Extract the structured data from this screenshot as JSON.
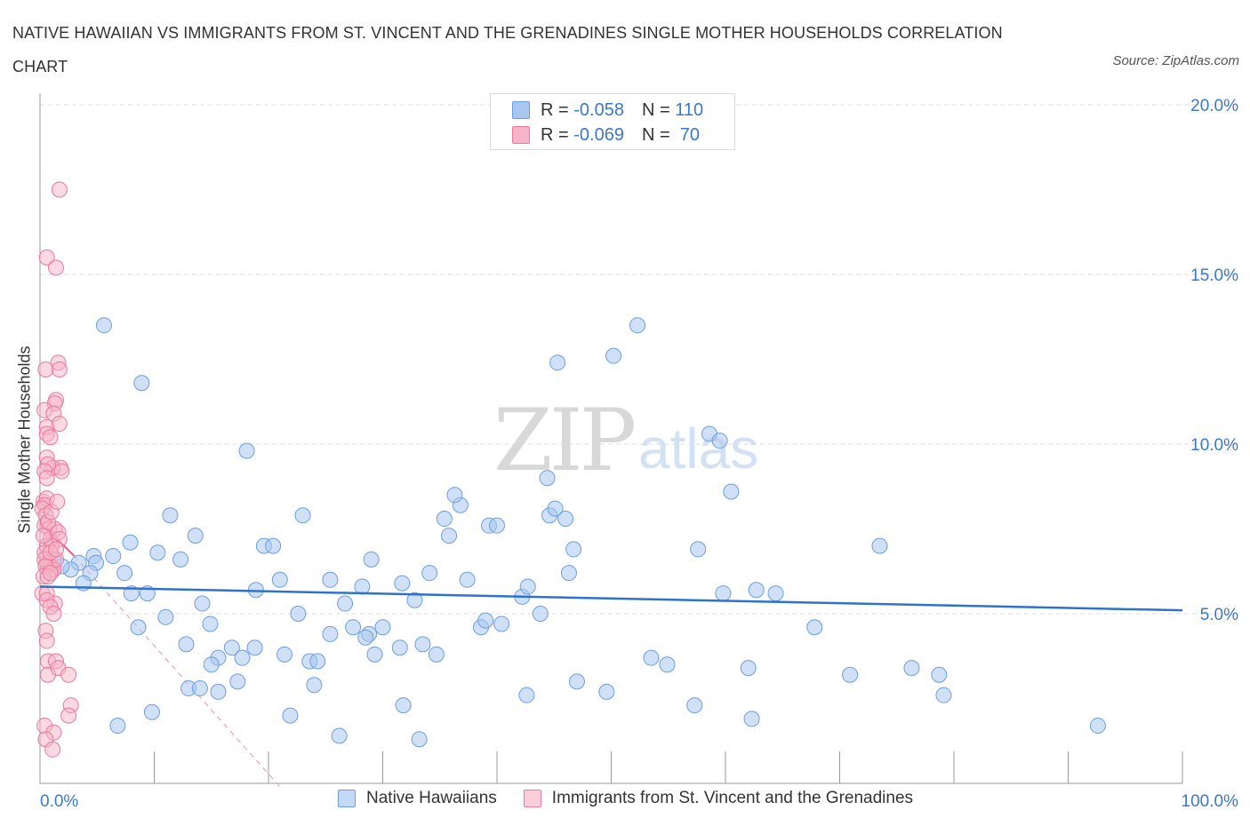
{
  "title": "NATIVE HAWAIIAN VS IMMIGRANTS FROM ST. VINCENT AND THE GRENADINES SINGLE MOTHER HOUSEHOLDS CORRELATION CHART",
  "source": "Source: ZipAtlas.com",
  "watermark": {
    "zip": "ZIP",
    "atlas": "atlas"
  },
  "legend": {
    "r_label": "R = ",
    "n_label": "N = ",
    "entries": [
      {
        "r": "-0.058",
        "n": "110"
      },
      {
        "r": "-0.069",
        "n": " 70"
      }
    ]
  },
  "bottom_legend": [
    "Native Hawaiians",
    "Immigrants from St. Vincent and the Grenadines"
  ],
  "colors": {
    "blue_fill": "#a9c8f0",
    "blue_stroke": "#6b9ee0",
    "blue_line": "#2e72cf",
    "pink_fill": "#f6b4c8",
    "pink_stroke": "#e9799d",
    "pink_line": "#e8588a",
    "axis_text": "#3a78c9",
    "grid": "#dddddd"
  },
  "chart_data": {
    "type": "scatter",
    "title": "NATIVE HAWAIIAN VS IMMIGRANTS FROM ST. VINCENT AND THE GRENADINES SINGLE MOTHER HOUSEHOLDS CORRELATION CHART",
    "xlabel": "",
    "ylabel": "Single Mother Households",
    "xlim": [
      0,
      100
    ],
    "ylim": [
      0,
      20
    ],
    "x_tick_labels": [
      "0.0%",
      "100.0%"
    ],
    "y_ticks": [
      5,
      10,
      15,
      20
    ],
    "y_tick_labels": [
      "5.0%",
      "10.0%",
      "15.0%",
      "20.0%"
    ],
    "grid": true,
    "legend_placement": "top-center",
    "series": [
      {
        "name": "Native Hawaiians",
        "r": -0.058,
        "n": 110,
        "trend": [
          [
            0,
            5.8
          ],
          [
            100,
            5.1
          ]
        ],
        "points": [
          [
            5.6,
            13.5
          ],
          [
            8.9,
            11.8
          ],
          [
            18.1,
            9.8
          ],
          [
            11.4,
            7.9
          ],
          [
            13.6,
            7.3
          ],
          [
            7.9,
            7.1
          ],
          [
            10.3,
            6.8
          ],
          [
            4.7,
            6.7
          ],
          [
            6.4,
            6.7
          ],
          [
            3.4,
            6.5
          ],
          [
            4.9,
            6.5
          ],
          [
            2.7,
            6.3
          ],
          [
            1.9,
            6.4
          ],
          [
            7.4,
            6.2
          ],
          [
            4.4,
            6.2
          ],
          [
            1.2,
            6.6
          ],
          [
            3.8,
            5.9
          ],
          [
            9.4,
            5.6
          ],
          [
            14.2,
            5.3
          ],
          [
            19.6,
            7.0
          ],
          [
            20.4,
            7.0
          ],
          [
            23.0,
            7.9
          ],
          [
            21.0,
            6.0
          ],
          [
            18.9,
            5.7
          ],
          [
            25.4,
            6.0
          ],
          [
            28.2,
            5.8
          ],
          [
            26.7,
            5.3
          ],
          [
            22.6,
            5.0
          ],
          [
            11.0,
            4.9
          ],
          [
            14.9,
            4.7
          ],
          [
            8.6,
            4.6
          ],
          [
            12.8,
            4.1
          ],
          [
            16.8,
            4.0
          ],
          [
            18.8,
            4.0
          ],
          [
            15.6,
            3.7
          ],
          [
            15.0,
            3.5
          ],
          [
            17.7,
            3.7
          ],
          [
            21.4,
            3.8
          ],
          [
            23.6,
            3.6
          ],
          [
            24.3,
            3.6
          ],
          [
            25.4,
            4.4
          ],
          [
            27.4,
            4.6
          ],
          [
            28.8,
            4.4
          ],
          [
            29.3,
            3.8
          ],
          [
            24.0,
            2.9
          ],
          [
            17.3,
            3.0
          ],
          [
            13.0,
            2.8
          ],
          [
            14.0,
            2.8
          ],
          [
            15.6,
            2.7
          ],
          [
            9.8,
            2.1
          ],
          [
            6.8,
            1.7
          ],
          [
            21.9,
            2.0
          ],
          [
            26.2,
            1.4
          ],
          [
            31.5,
            4.0
          ],
          [
            33.5,
            4.1
          ],
          [
            34.7,
            3.8
          ],
          [
            30.0,
            4.6
          ],
          [
            31.7,
            5.9
          ],
          [
            29.0,
            6.6
          ],
          [
            32.8,
            5.4
          ],
          [
            34.1,
            6.2
          ],
          [
            37.4,
            6.0
          ],
          [
            35.4,
            7.8
          ],
          [
            35.8,
            7.3
          ],
          [
            36.8,
            8.2
          ],
          [
            36.3,
            8.5
          ],
          [
            39.3,
            7.6
          ],
          [
            40.0,
            7.6
          ],
          [
            38.6,
            4.6
          ],
          [
            40.4,
            4.7
          ],
          [
            39.0,
            4.8
          ],
          [
            42.2,
            5.5
          ],
          [
            42.7,
            5.8
          ],
          [
            43.8,
            5.0
          ],
          [
            42.6,
            2.6
          ],
          [
            33.2,
            1.3
          ],
          [
            31.8,
            2.3
          ],
          [
            44.4,
            9.0
          ],
          [
            44.6,
            7.9
          ],
          [
            45.1,
            8.1
          ],
          [
            46.0,
            7.8
          ],
          [
            46.7,
            6.9
          ],
          [
            45.3,
            12.4
          ],
          [
            47.0,
            3.0
          ],
          [
            49.6,
            2.7
          ],
          [
            50.2,
            12.6
          ],
          [
            52.3,
            13.5
          ],
          [
            53.5,
            3.7
          ],
          [
            54.9,
            3.5
          ],
          [
            57.3,
            2.3
          ],
          [
            58.6,
            10.3
          ],
          [
            59.5,
            10.1
          ],
          [
            60.5,
            8.6
          ],
          [
            57.6,
            6.9
          ],
          [
            62.7,
            5.7
          ],
          [
            62.0,
            3.4
          ],
          [
            64.4,
            5.6
          ],
          [
            67.8,
            4.6
          ],
          [
            62.3,
            1.9
          ],
          [
            70.9,
            3.2
          ],
          [
            73.5,
            7.0
          ],
          [
            76.3,
            3.4
          ],
          [
            78.7,
            3.2
          ],
          [
            79.1,
            2.6
          ],
          [
            92.6,
            1.7
          ],
          [
            59.8,
            5.6
          ],
          [
            28.5,
            4.3
          ],
          [
            12.3,
            6.6
          ],
          [
            8.0,
            5.6
          ],
          [
            46.3,
            6.2
          ]
        ]
      },
      {
        "name": "Immigrants from St. Vincent and the Grenadines",
        "r": -0.069,
        "n": 70,
        "trend": [
          [
            0,
            7.7
          ],
          [
            3,
            6.7
          ]
        ],
        "trend_extended": [
          [
            3,
            6.7
          ],
          [
            21,
            -0.1
          ]
        ],
        "points": [
          [
            1.7,
            17.5
          ],
          [
            0.6,
            15.5
          ],
          [
            1.4,
            15.2
          ],
          [
            1.6,
            12.4
          ],
          [
            1.7,
            12.2
          ],
          [
            0.5,
            12.2
          ],
          [
            1.4,
            11.3
          ],
          [
            1.3,
            11.2
          ],
          [
            0.4,
            11.0
          ],
          [
            1.2,
            10.9
          ],
          [
            0.6,
            10.5
          ],
          [
            1.7,
            10.6
          ],
          [
            0.6,
            10.3
          ],
          [
            0.6,
            9.6
          ],
          [
            1.8,
            9.3
          ],
          [
            1.1,
            9.3
          ],
          [
            0.7,
            9.4
          ],
          [
            1.9,
            9.2
          ],
          [
            0.4,
            9.2
          ],
          [
            0.3,
            8.3
          ],
          [
            0.6,
            8.4
          ],
          [
            0.4,
            8.2
          ],
          [
            0.2,
            8.1
          ],
          [
            0.5,
            7.9
          ],
          [
            0.4,
            7.6
          ],
          [
            0.8,
            7.5
          ],
          [
            0.9,
            7.2
          ],
          [
            1.3,
            7.5
          ],
          [
            1.6,
            7.4
          ],
          [
            1.7,
            7.2
          ],
          [
            1.0,
            7.0
          ],
          [
            0.6,
            7.0
          ],
          [
            0.4,
            6.8
          ],
          [
            0.6,
            6.5
          ],
          [
            0.9,
            6.4
          ],
          [
            1.0,
            6.3
          ],
          [
            1.2,
            6.3
          ],
          [
            1.4,
            6.6
          ],
          [
            0.4,
            6.6
          ],
          [
            0.5,
            6.4
          ],
          [
            0.3,
            6.1
          ],
          [
            0.7,
            6.1
          ],
          [
            0.9,
            6.2
          ],
          [
            0.2,
            5.6
          ],
          [
            0.6,
            5.6
          ],
          [
            1.3,
            5.3
          ],
          [
            0.6,
            5.4
          ],
          [
            0.9,
            5.2
          ],
          [
            1.2,
            5.0
          ],
          [
            0.5,
            4.5
          ],
          [
            0.6,
            4.2
          ],
          [
            0.7,
            3.6
          ],
          [
            1.4,
            3.6
          ],
          [
            0.7,
            3.2
          ],
          [
            1.6,
            3.4
          ],
          [
            2.5,
            3.2
          ],
          [
            2.7,
            2.3
          ],
          [
            2.5,
            2.0
          ],
          [
            0.4,
            1.7
          ],
          [
            1.2,
            1.5
          ],
          [
            0.5,
            1.3
          ],
          [
            1.1,
            1.0
          ],
          [
            0.9,
            6.8
          ],
          [
            1.4,
            6.9
          ],
          [
            0.3,
            7.3
          ],
          [
            0.7,
            7.7
          ],
          [
            1.0,
            8.0
          ],
          [
            1.5,
            8.3
          ],
          [
            0.6,
            9.0
          ],
          [
            0.9,
            10.2
          ]
        ]
      }
    ]
  }
}
